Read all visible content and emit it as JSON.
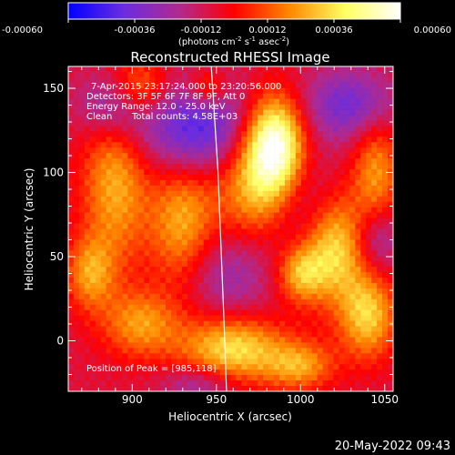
{
  "chart_data": {
    "type": "heatmap",
    "title": "Reconstructed RHESSI Image",
    "xlabel": "Heliocentric X (arcsec)",
    "ylabel": "Heliocentric Y (arcsec)",
    "xlim": [
      862,
      1055
    ],
    "ylim": [
      -30,
      163
    ],
    "x_ticks": [
      900,
      950,
      1000,
      1050
    ],
    "y_ticks": [
      0,
      50,
      100,
      150
    ],
    "colorbar": {
      "range": [
        -0.0006,
        0.0006
      ],
      "ticks": [
        "-0.00060",
        "-0.00036",
        "-0.00012",
        "0.00012",
        "0.00036",
        "0.00060"
      ],
      "unit_prefix": "(photons cm",
      "unit_exp1": "-2",
      "unit_mid1": " s",
      "unit_exp2": "-1",
      "unit_mid2": " asec",
      "unit_exp3": "-2",
      "unit_suffix": ")",
      "colors": [
        "#0000ff",
        "#6a2de0",
        "#b02a90",
        "#ff0000",
        "#ff8800",
        "#ffff60",
        "#ffffff"
      ]
    },
    "annotations": {
      "time_range": "7-Apr-2015 23:17:24.000 to 23:20:56.000",
      "detectors": "Detectors: 3F 5F 6F 7F 8F 9F, Att 0",
      "energy": "Energy Range: 12.0 - 25.0 keV",
      "method": "Clean",
      "counts": "Total counts: 4.58E+03",
      "peak": "Position of Peak = [985,118]"
    },
    "peak": {
      "x": 985,
      "y": 118
    },
    "blobs": [
      {
        "x": 985,
        "y": 118,
        "sx": 12,
        "sy": 20,
        "v": 0.0006
      },
      {
        "x": 975,
        "y": 95,
        "sx": 18,
        "sy": 25,
        "v": 0.0004
      },
      {
        "x": 1020,
        "y": 55,
        "sx": 14,
        "sy": 22,
        "v": 0.00045
      },
      {
        "x": 1000,
        "y": 40,
        "sx": 10,
        "sy": 12,
        "v": 0.00035
      },
      {
        "x": 1045,
        "y": 100,
        "sx": 10,
        "sy": 25,
        "v": 0.0003
      },
      {
        "x": 1040,
        "y": 15,
        "sx": 12,
        "sy": 18,
        "v": 0.0004
      },
      {
        "x": 1000,
        "y": -15,
        "sx": 14,
        "sy": 10,
        "v": 0.0003
      },
      {
        "x": 960,
        "y": -5,
        "sx": 22,
        "sy": 14,
        "v": 0.00045
      },
      {
        "x": 930,
        "y": 70,
        "sx": 14,
        "sy": 28,
        "v": 0.00035
      },
      {
        "x": 890,
        "y": 95,
        "sx": 14,
        "sy": 35,
        "v": 0.00035
      },
      {
        "x": 905,
        "y": 150,
        "sx": 12,
        "sy": 12,
        "v": 0.0003
      },
      {
        "x": 875,
        "y": 40,
        "sx": 10,
        "sy": 15,
        "v": 0.0003
      },
      {
        "x": 905,
        "y": 10,
        "sx": 16,
        "sy": 14,
        "v": 0.0003
      },
      {
        "x": 945,
        "y": 150,
        "sx": 8,
        "sy": 8,
        "v": 0.00025
      },
      {
        "x": 940,
        "y": 125,
        "sx": 25,
        "sy": 20,
        "v": -0.0004
      },
      {
        "x": 890,
        "y": 140,
        "sx": 15,
        "sy": 15,
        "v": -0.0003
      },
      {
        "x": 1000,
        "y": 80,
        "sx": 15,
        "sy": 25,
        "v": -0.0002
      },
      {
        "x": 955,
        "y": 40,
        "sx": 20,
        "sy": 20,
        "v": -0.0002
      },
      {
        "x": 1030,
        "y": 140,
        "sx": 20,
        "sy": 15,
        "v": -0.0003
      },
      {
        "x": 1045,
        "y": 60,
        "sx": 10,
        "sy": 15,
        "v": -0.00025
      },
      {
        "x": 940,
        "y": -25,
        "sx": 15,
        "sy": 8,
        "v": -0.0002
      }
    ],
    "limb_arc": [
      {
        "x": 947,
        "y": 163
      },
      {
        "x": 951,
        "y": 100
      },
      {
        "x": 953,
        "y": 50
      },
      {
        "x": 955,
        "y": 0
      },
      {
        "x": 956,
        "y": -30
      }
    ]
  },
  "footer": {
    "timestamp": "20-May-2022 09:43"
  }
}
